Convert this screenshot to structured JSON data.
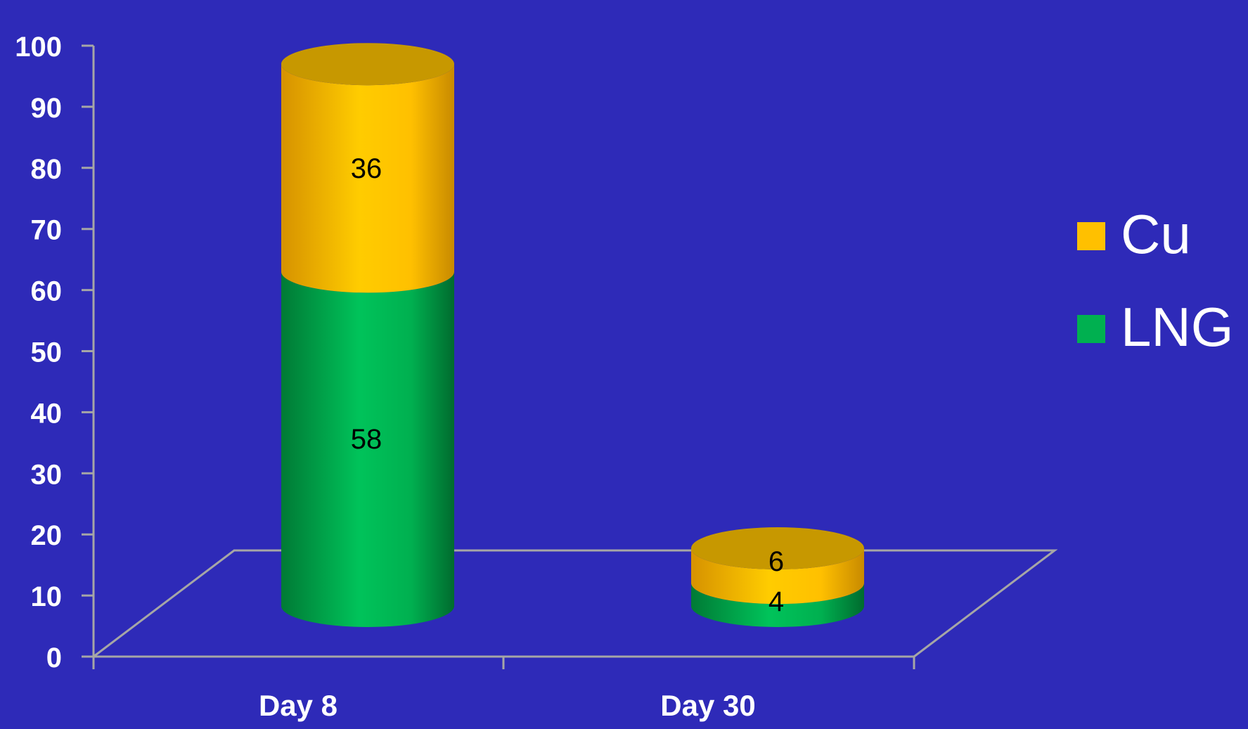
{
  "chart_data": {
    "type": "bar",
    "stacked": true,
    "style": "3d-cylinder",
    "categories": [
      "Day 8",
      "Day 30"
    ],
    "series": [
      {
        "name": "LNG",
        "values": [
          58,
          4
        ],
        "color": "#00b050",
        "label_color": "#000000"
      },
      {
        "name": "Cu",
        "values": [
          36,
          6
        ],
        "color": "#ffc000",
        "label_color": "#000000"
      }
    ],
    "data_labels": [
      [
        "58",
        "4"
      ],
      [
        "36",
        "6"
      ]
    ],
    "y_ticks": [
      "0",
      "10",
      "20",
      "30",
      "40",
      "50",
      "60",
      "70",
      "80",
      "90",
      "100"
    ],
    "ylim": [
      0,
      100
    ],
    "title": "",
    "xlabel": "",
    "ylabel": "",
    "grid": false,
    "legend_position": "right",
    "background_color": "#2e2ab8",
    "axis_color": "#a6a6a6",
    "text_color": "#ffffff"
  }
}
